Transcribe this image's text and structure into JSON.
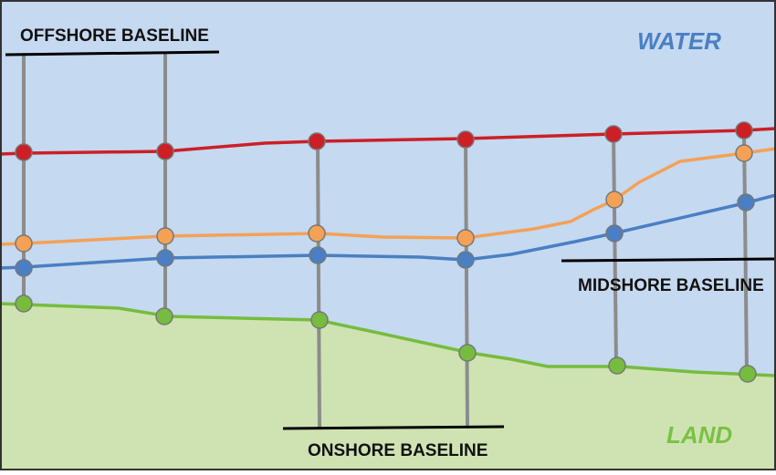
{
  "labels": {
    "water": "WATER",
    "land": "LAND",
    "offshore_baseline": "OFFSHORE BASELINE",
    "midshore_baseline": "MIDSHORE BASELINE",
    "onshore_baseline": "ONSHORE BASELINE"
  },
  "colors": {
    "water": "#c5d9f0",
    "land": "#cfe3b2",
    "water_text": "#4a7fc3",
    "land_text": "#7ac143",
    "transect": "#8c8c8c",
    "baseline": "#000000",
    "frame": "#333333",
    "shoreline_red": "#cc1f26",
    "shoreline_orange": "#f4a155",
    "shoreline_blue": "#4a7fc3",
    "shoreline_green": "#76bc3f"
  }
}
